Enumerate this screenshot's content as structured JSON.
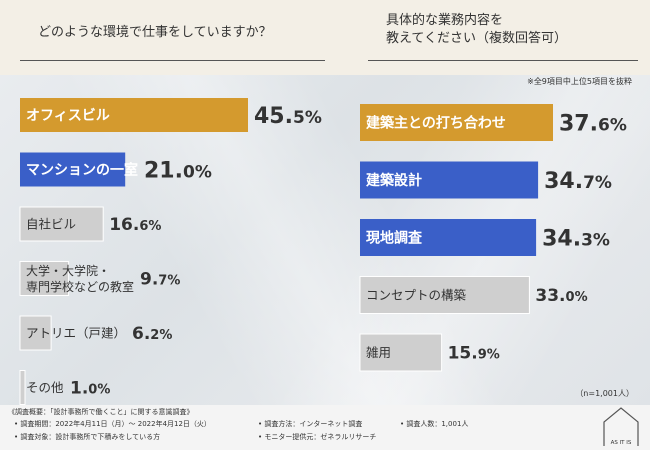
{
  "questions": {
    "left": "どのような環境で仕事をしていますか？",
    "right_line1": "具体的な業務内容を",
    "right_line2": "教えてください（複数回答可）"
  },
  "notes": {
    "top": "※全9項目中上位5項目を抜粋",
    "sample": "（n=1,001人）"
  },
  "colors": {
    "gold": "#d49a2e",
    "blue": "#3a5fc8",
    "gray": "#cfcfcf"
  },
  "chart_data": [
    {
      "type": "bar",
      "orientation": "horizontal",
      "categories": [
        "オフィスビル",
        "マンションの一室",
        "自社ビル",
        "大学・大学院・専門学校などの教室",
        "アトリエ（戸建）",
        "その他"
      ],
      "category_lines": [
        [
          "オフィスビル"
        ],
        [
          "マンションの一室"
        ],
        [
          "自社ビル"
        ],
        [
          "大学・大学院・",
          "専門学校などの教室"
        ],
        [
          "アトリエ（戸建）"
        ],
        [
          "その他"
        ]
      ],
      "values": [
        45.5,
        21.0,
        16.6,
        9.7,
        6.2,
        1.0
      ],
      "value_labels": [
        [
          "45.",
          "5",
          "%"
        ],
        [
          "21.",
          "0",
          "%"
        ],
        [
          "16.",
          "6",
          "%"
        ],
        [
          "9.",
          "7",
          "%"
        ],
        [
          "6.",
          "2",
          "%"
        ],
        [
          "1.",
          "0",
          "%"
        ]
      ],
      "colors": [
        "#d49a2e",
        "#3a5fc8",
        "#cfcfcf",
        "#cfcfcf",
        "#cfcfcf",
        "#cfcfcf"
      ],
      "xlim": [
        0,
        45.5
      ]
    },
    {
      "type": "bar",
      "orientation": "horizontal",
      "categories": [
        "建築主との打ち合わせ",
        "建築設計",
        "現地調査",
        "コンセプトの構築",
        "雑用"
      ],
      "category_lines": [
        [
          "建築主との打ち合わせ"
        ],
        [
          "建築設計"
        ],
        [
          "現地調査"
        ],
        [
          "コンセプトの構築"
        ],
        [
          "雑用"
        ]
      ],
      "values": [
        37.6,
        34.7,
        34.3,
        33.0,
        15.9
      ],
      "value_labels": [
        [
          "37.",
          "6",
          "%"
        ],
        [
          "34.",
          "7",
          "%"
        ],
        [
          "34.",
          "3",
          "%"
        ],
        [
          "33.",
          "0",
          "%"
        ],
        [
          "15.",
          "9",
          "%"
        ]
      ],
      "colors": [
        "#d49a2e",
        "#3a5fc8",
        "#3a5fc8",
        "#cfcfcf",
        "#cfcfcf"
      ],
      "xlim": [
        0,
        37.6
      ]
    }
  ],
  "footer": {
    "overview": "《調査概要：「設計事務所で働くこと」に関する意識調査》",
    "period": "• 調査期間：2022年4月11日（月）～ 2022年4月12日（火）",
    "target": "• 調査対象：設計事務所で下積みをしている方",
    "method": "• 調査方法：インターネット調査",
    "provider": "• モニター提供元：ゼネラルリサーチ",
    "count": "• 調査人数：1,001人",
    "logo": "AS IT IS"
  }
}
